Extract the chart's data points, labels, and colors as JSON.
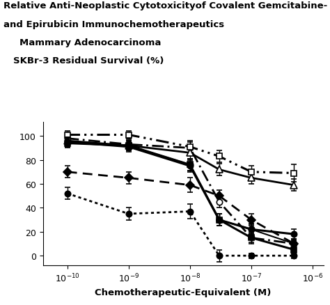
{
  "title_line1": "Relative Anti-Neoplastic Cytotoxicityof Covalent Gemcitabine-",
  "title_line2": "and Epirubicin Immunochemotherapeutics",
  "subtitle1": "Mammary Adenocarcinoma",
  "subtitle2": "SKBr-3 Residual Survival (%)",
  "xlabel": "Chemotherapeutic-Equivalent (M)",
  "x_values": [
    1e-10,
    1e-09,
    1e-08,
    3e-08,
    1e-07,
    5e-07
  ],
  "series": [
    {
      "name": "dotted_filled_circle",
      "y": [
        52,
        35,
        37,
        0,
        0,
        0
      ],
      "yerr": [
        5,
        5,
        6,
        5,
        2,
        2
      ],
      "marker": "o",
      "markersize": 6,
      "linestyle": "dotted",
      "fillstyle": "full",
      "linewidth": 2.0,
      "zorder": 3
    },
    {
      "name": "dashed_filled_diamond",
      "y": [
        70,
        65,
        59,
        50,
        30,
        10
      ],
      "yerr": [
        5,
        5,
        6,
        5,
        5,
        3
      ],
      "marker": "D",
      "markersize": 6,
      "linestyle": "dashed",
      "fillstyle": "full",
      "linewidth": 2.0,
      "zorder": 3
    },
    {
      "name": "solid_filled_circle_1",
      "y": [
        95,
        91,
        75,
        30,
        22,
        18
      ],
      "yerr": [
        4,
        4,
        5,
        5,
        4,
        4
      ],
      "marker": "o",
      "markersize": 6,
      "linestyle": "solid",
      "fillstyle": "full",
      "linewidth": 2.2,
      "zorder": 4
    },
    {
      "name": "solid_filled_square",
      "y": [
        94,
        92,
        76,
        30,
        15,
        5
      ],
      "yerr": [
        4,
        4,
        5,
        5,
        4,
        3
      ],
      "marker": "s",
      "markersize": 6,
      "linestyle": "solid",
      "fillstyle": "full",
      "linewidth": 2.2,
      "zorder": 4
    },
    {
      "name": "solid_filled_circle_2",
      "y": [
        95,
        92,
        76,
        30,
        22,
        10
      ],
      "yerr": [
        4,
        4,
        5,
        5,
        5,
        3
      ],
      "marker": "o",
      "markersize": 6,
      "linestyle": "solid",
      "fillstyle": "full",
      "linewidth": 1.5,
      "zorder": 4
    },
    {
      "name": "dashdot_open_circle",
      "y": [
        98,
        93,
        90,
        45,
        15,
        10
      ],
      "yerr": [
        4,
        4,
        5,
        5,
        5,
        4
      ],
      "marker": "o",
      "markersize": 6,
      "linestyle": "dashdot",
      "fillstyle": "none",
      "linewidth": 2.0,
      "zorder": 3
    },
    {
      "name": "solid_open_triangle",
      "y": [
        96,
        92,
        86,
        72,
        65,
        59
      ],
      "yerr": [
        4,
        4,
        5,
        5,
        5,
        5
      ],
      "marker": "^",
      "markersize": 7,
      "linestyle": "solid",
      "fillstyle": "none",
      "linewidth": 2.0,
      "zorder": 3
    },
    {
      "name": "dashdot_open_square",
      "y": [
        101,
        101,
        91,
        83,
        70,
        69
      ],
      "yerr": [
        3,
        3,
        5,
        5,
        5,
        7
      ],
      "marker": "s",
      "markersize": 6,
      "linestyle": "dashdotdot",
      "fillstyle": "none",
      "linewidth": 2.2,
      "zorder": 3
    }
  ],
  "ylim": [
    -8,
    112
  ],
  "yticks": [
    0,
    20,
    40,
    60,
    80,
    100
  ],
  "title_fontsize": 9.5,
  "subtitle1_fontsize": 9.5,
  "subtitle2_fontsize": 9.5,
  "axis_label_fontsize": 9.5,
  "tick_fontsize": 9
}
